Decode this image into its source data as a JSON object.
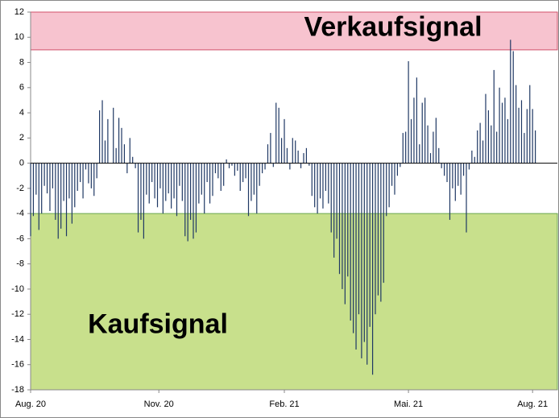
{
  "chart_data": {
    "type": "bar",
    "x": [
      0,
      2,
      4,
      6,
      8,
      10,
      12,
      14,
      16,
      18,
      20,
      22,
      24,
      26,
      28,
      30,
      32,
      34,
      36,
      38,
      40,
      42,
      44,
      46,
      48,
      50,
      52,
      54,
      56,
      58,
      60,
      62,
      64,
      66,
      68,
      70,
      72,
      74,
      76,
      78,
      80,
      82,
      84,
      86,
      88,
      90,
      92,
      94,
      96,
      98,
      100,
      102,
      104,
      106,
      108,
      110,
      112,
      114,
      116,
      118,
      120,
      122,
      124,
      126,
      128,
      130,
      132,
      134,
      136,
      138,
      140,
      142,
      144,
      146,
      148,
      150,
      152,
      154,
      156,
      158,
      160,
      162,
      164,
      166,
      168,
      170,
      172,
      174,
      176,
      178,
      180,
      182,
      184,
      186,
      188,
      190,
      192,
      194,
      196,
      198,
      200,
      202,
      204,
      206,
      208,
      210,
      212,
      214,
      216,
      218,
      220,
      222,
      224,
      226,
      228,
      230,
      232,
      234,
      236,
      238,
      240,
      242,
      244,
      246,
      248,
      250,
      252,
      254,
      256,
      258,
      260,
      262,
      264,
      266,
      268,
      270,
      272,
      274,
      276,
      278,
      280,
      282,
      284,
      286,
      288,
      290,
      292,
      294,
      296,
      298,
      300,
      302,
      304,
      306,
      308,
      310,
      312,
      314,
      316,
      318,
      320,
      322,
      324,
      326,
      328,
      330,
      332,
      334,
      336,
      338,
      340,
      342,
      344,
      346,
      348,
      350,
      352,
      354,
      356,
      358,
      360,
      362,
      364,
      366
    ],
    "values": [
      -5.8,
      -4.2,
      -2.5,
      -5.3,
      -4,
      -1.8,
      -2.4,
      -3.8,
      -2,
      -4.5,
      -6,
      -5.2,
      -3,
      -5.8,
      -2.8,
      -4.8,
      -3.5,
      -2.2,
      -1.5,
      -2.8,
      -0.5,
      -1.6,
      -2,
      -2.6,
      -1.2,
      4.2,
      5,
      1.8,
      3.5,
      0,
      4.4,
      1.2,
      3.6,
      2.8,
      1.5,
      -0.8,
      2,
      0.5,
      -0.4,
      -5.5,
      -4.5,
      -6,
      -2.5,
      -3.2,
      -1.5,
      -2.8,
      -3.5,
      -2,
      -4,
      -3,
      -2.4,
      -3.6,
      -2.8,
      -4.2,
      -1.8,
      -3,
      -5.8,
      -6.2,
      -4.5,
      -6,
      -5.5,
      -3.2,
      -2.5,
      -4,
      -1.5,
      -3.2,
      -2.6,
      -0.8,
      -1.2,
      -2.2,
      -1.8,
      0.3,
      -0.4,
      -0.2,
      -1,
      -0.6,
      -2.2,
      -1.5,
      -1.2,
      -4.2,
      -3,
      -2.5,
      -4,
      -1.8,
      -0.8,
      -0.5,
      1.5,
      2.4,
      -0.3,
      4.8,
      4.4,
      2,
      3.5,
      1.2,
      -0.5,
      2,
      1.8,
      1,
      -0.4,
      0.8,
      1.2,
      -0.2,
      -2.6,
      -3.5,
      -4,
      -2.8,
      -3.6,
      -2.2,
      -3.2,
      -5.5,
      -7.5,
      -6,
      -8.8,
      -10,
      -11.2,
      -9,
      -12.5,
      -13.5,
      -14.8,
      -12,
      -15.5,
      -14.2,
      -16,
      -13,
      -16.8,
      -12,
      -10.5,
      -11,
      -9.5,
      -4.2,
      -3.5,
      -1.8,
      -2.5,
      -1,
      -0.3,
      2.4,
      2.5,
      8.1,
      3.5,
      5.2,
      6.8,
      1.5,
      4.8,
      5.2,
      3,
      0.8,
      2.5,
      3.6,
      1.2,
      -0.4,
      -1,
      -1.5,
      -4.5,
      -2,
      -3,
      -1.8,
      -2.5,
      -1,
      -5.5,
      -0.5,
      1,
      0.5,
      2.6,
      3.2,
      1.8,
      5.5,
      4.2,
      3,
      7.4,
      2.5,
      6,
      4.8,
      5.2,
      3.5,
      9.8,
      8.9,
      6.2,
      4.4,
      5,
      2.4,
      4.3,
      6.2,
      4.3,
      2.6
    ],
    "color": "#1f3864",
    "xlim": [
      0,
      382
    ],
    "xticks": [
      {
        "value": 0,
        "label": "Aug. 20"
      },
      {
        "value": 93,
        "label": "Nov. 20"
      },
      {
        "value": 184,
        "label": "Feb. 21"
      },
      {
        "value": 274,
        "label": "Mai. 21"
      },
      {
        "value": 364,
        "label": "Aug. 21"
      }
    ],
    "ylim": [
      -18,
      12
    ],
    "yticks": [
      12,
      10,
      8,
      6,
      4,
      2,
      0,
      -2,
      -4,
      -6,
      -8,
      -10,
      -12,
      -14,
      -16,
      -18
    ],
    "grid": false,
    "zones": [
      {
        "label": "Verkaufsignal",
        "from": 9,
        "to": 12,
        "color": "#f7c3cf",
        "border": "#d0506a"
      },
      {
        "label": "Kaufsignal",
        "from": -4,
        "to": -18,
        "color": "#c8e08c",
        "border": "#6aa84f"
      }
    ]
  }
}
